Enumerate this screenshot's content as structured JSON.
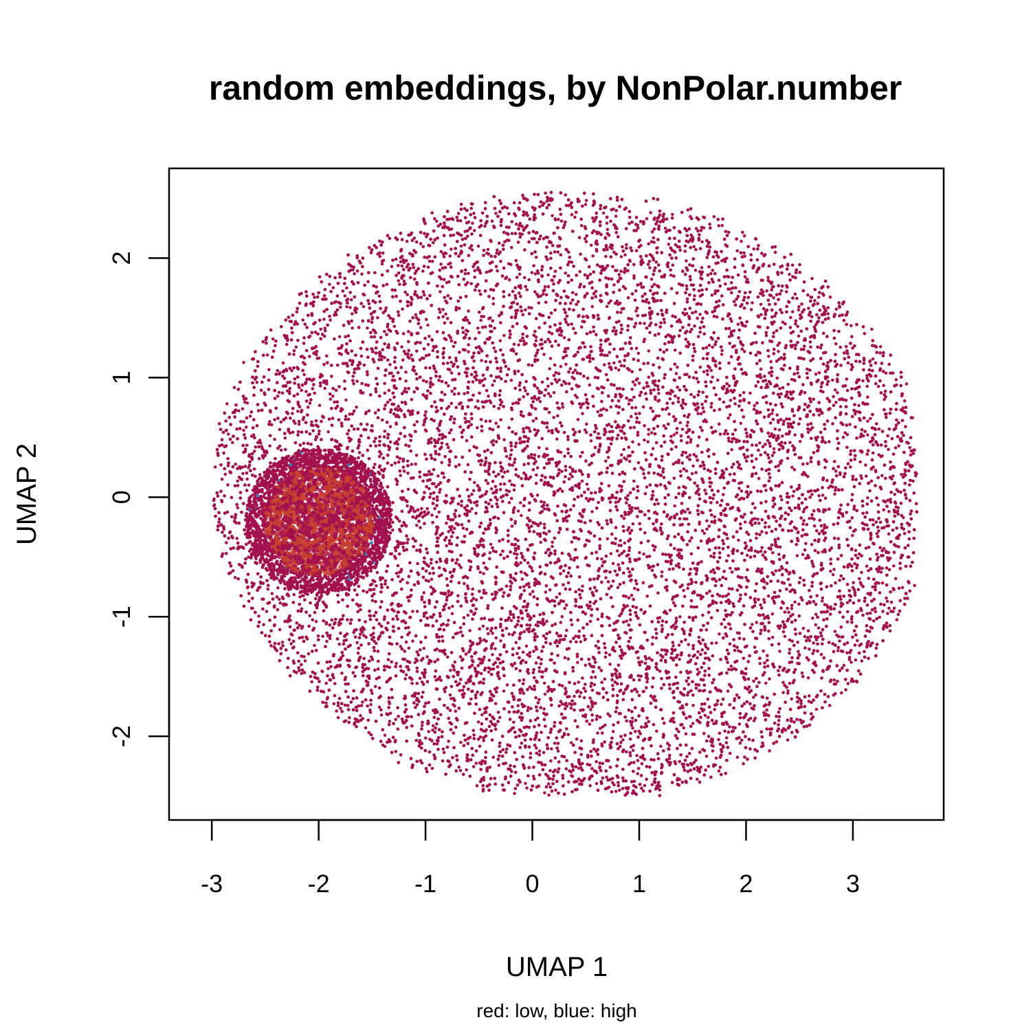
{
  "chart_data": {
    "type": "scatter",
    "title": "random embeddings, by NonPolar.number",
    "xlabel": "UMAP 1",
    "ylabel": "UMAP 2",
    "subtitle": "red: low, blue: high",
    "xlim": [
      -3.4,
      3.85
    ],
    "ylim": [
      -2.7,
      2.75
    ],
    "x_ticks": [
      -3,
      -2,
      -1,
      0,
      1,
      2,
      3
    ],
    "x_tick_labels": [
      "-3",
      "-2",
      "-1",
      "0",
      "1",
      "2",
      "3"
    ],
    "y_ticks": [
      -2,
      -1,
      0,
      1,
      2
    ],
    "y_tick_labels": [
      "-2",
      "-1",
      "0",
      "1",
      "2"
    ],
    "grid": false,
    "legend": "none",
    "color_scale": {
      "low_label": "red",
      "high_label": "blue",
      "base_color": "#A3114E",
      "mid_color": "#C8412E",
      "high_color": "#3B7DB8"
    },
    "point_cloud": {
      "description_units": "data",
      "center": [
        0.35,
        0.0
      ],
      "extent_x": [
        -3.1,
        3.6
      ],
      "extent_y": [
        -2.5,
        2.6
      ],
      "dense_region_center": [
        -2.0,
        -0.2
      ],
      "dense_region_radius": [
        0.55,
        0.45
      ],
      "approx_count": 40000
    }
  }
}
